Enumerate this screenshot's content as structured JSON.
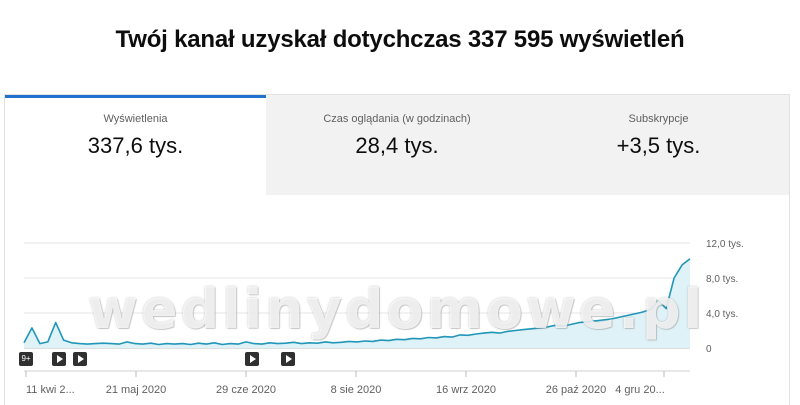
{
  "headline": "Twój kanał uzyskał dotychczas 337 595 wyświetleń",
  "tabs": [
    {
      "label": "Wyświetlenia",
      "value": "337,6 tys.",
      "active": true
    },
    {
      "label": "Czas oglądania (w godzinach)",
      "value": "28,4 tys.",
      "active": false
    },
    {
      "label": "Subskrypcje",
      "value": "+3,5 tys.",
      "active": false
    }
  ],
  "watermark": "wedlinydomowe.pl",
  "markers": [
    {
      "label": "9+",
      "icon": "play-icon-multi"
    },
    {
      "label": "",
      "icon": "play-icon"
    },
    {
      "label": "",
      "icon": "play-icon"
    },
    {
      "label": "",
      "icon": "play-icon"
    },
    {
      "label": "",
      "icon": "play-icon"
    }
  ],
  "colors": {
    "accent": "#2170cc",
    "line": "#2196b8",
    "area": "#dff2f7"
  },
  "chart_data": {
    "type": "area",
    "ylim": [
      0,
      12000
    ],
    "yticks": [
      0,
      4000,
      8000,
      12000
    ],
    "ytick_labels": [
      "0",
      "4,0 tys.",
      "8,0 tys.",
      "12,0 tys."
    ],
    "xtick_labels": [
      "11 kwi 2...",
      "21 maj 2020",
      "29 cze 2020",
      "8 sie 2020",
      "16 wrz 2020",
      "26 paź 2020",
      "4 gru 20..."
    ],
    "grid": true,
    "x": [
      "2020-04-11",
      "2020-04-14",
      "2020-04-17",
      "2020-04-20",
      "2020-04-23",
      "2020-04-26",
      "2020-04-29",
      "2020-05-02",
      "2020-05-05",
      "2020-05-08",
      "2020-05-11",
      "2020-05-14",
      "2020-05-17",
      "2020-05-20",
      "2020-05-23",
      "2020-05-26",
      "2020-05-29",
      "2020-06-01",
      "2020-06-04",
      "2020-06-07",
      "2020-06-10",
      "2020-06-13",
      "2020-06-16",
      "2020-06-19",
      "2020-06-22",
      "2020-06-25",
      "2020-06-28",
      "2020-07-01",
      "2020-07-04",
      "2020-07-07",
      "2020-07-10",
      "2020-07-13",
      "2020-07-16",
      "2020-07-19",
      "2020-07-22",
      "2020-07-25",
      "2020-07-28",
      "2020-07-31",
      "2020-08-03",
      "2020-08-06",
      "2020-08-09",
      "2020-08-12",
      "2020-08-15",
      "2020-08-18",
      "2020-08-21",
      "2020-08-24",
      "2020-08-27",
      "2020-08-30",
      "2020-09-02",
      "2020-09-05",
      "2020-09-08",
      "2020-09-11",
      "2020-09-14",
      "2020-09-17",
      "2020-09-20",
      "2020-09-23",
      "2020-09-26",
      "2020-09-29",
      "2020-10-02",
      "2020-10-05",
      "2020-10-08",
      "2020-10-11",
      "2020-10-14",
      "2020-10-17",
      "2020-10-20",
      "2020-10-23",
      "2020-10-26",
      "2020-10-29",
      "2020-11-01",
      "2020-11-04",
      "2020-11-07",
      "2020-11-10",
      "2020-11-13",
      "2020-11-16",
      "2020-11-19",
      "2020-11-22",
      "2020-11-25",
      "2020-11-28",
      "2020-12-01",
      "2020-12-04",
      "2020-12-07",
      "2020-12-10",
      "2020-12-13",
      "2020-12-16",
      "2020-12-19"
    ],
    "series": [
      {
        "values": [
          600,
          2300,
          500,
          700,
          2900,
          900,
          600,
          500,
          450,
          500,
          550,
          500,
          450,
          700,
          500,
          450,
          550,
          400,
          500,
          450,
          500,
          400,
          550,
          450,
          600,
          400,
          500,
          450,
          700,
          500,
          450,
          600,
          500,
          550,
          650,
          500,
          600,
          550,
          700,
          600,
          650,
          750,
          700,
          800,
          750,
          900,
          850,
          1000,
          950,
          1100,
          1050,
          1200,
          1150,
          1300,
          1250,
          1500,
          1450,
          1600,
          1700,
          1800,
          1700,
          1900,
          2000,
          2100,
          2200,
          2300,
          2400,
          2600,
          2500,
          2700,
          2900,
          3000,
          3100,
          3200,
          3300,
          3500,
          3700,
          3900,
          4100,
          4400,
          5400,
          4500,
          8000,
          9500,
          10200
        ]
      }
    ]
  }
}
